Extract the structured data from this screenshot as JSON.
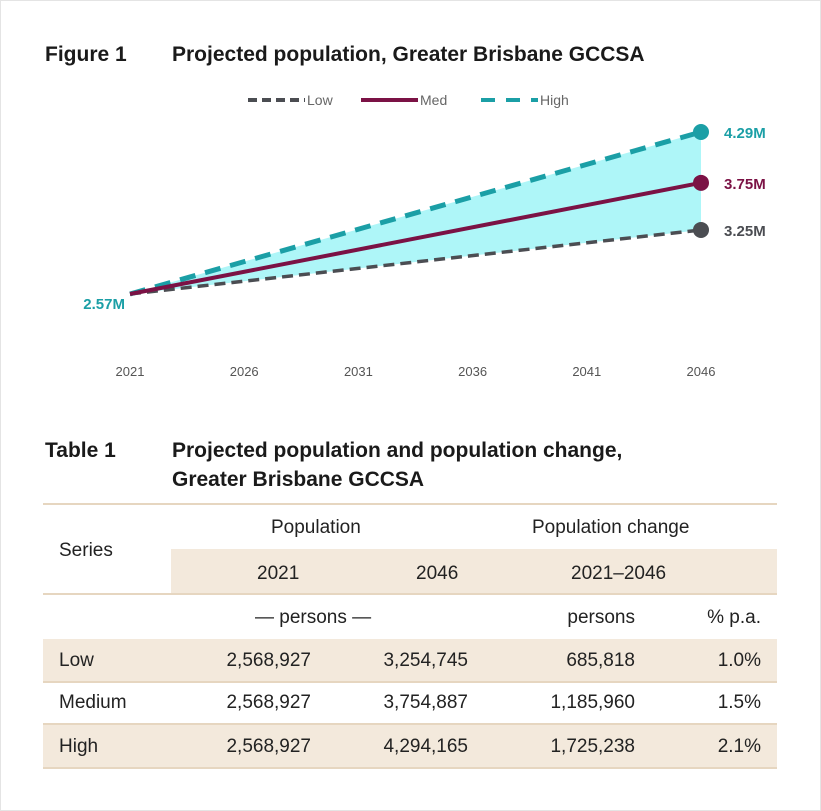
{
  "figure": {
    "label": "Figure 1",
    "title": "Projected population, Greater Brisbane GCCSA"
  },
  "chart_data": {
    "type": "line",
    "x": [
      2021,
      2046
    ],
    "x_ticks": [
      "2021",
      "2026",
      "2031",
      "2036",
      "2041",
      "2046"
    ],
    "unit": "million persons",
    "series": [
      {
        "name": "Low",
        "values": [
          2.57,
          3.25
        ],
        "end_label": "3.25M",
        "color": "#4b4d52",
        "style": "dashed"
      },
      {
        "name": "Med",
        "values": [
          2.57,
          3.75
        ],
        "end_label": "3.75M",
        "color": "#7b1245",
        "style": "solid"
      },
      {
        "name": "High",
        "values": [
          2.57,
          4.29
        ],
        "end_label": "4.29M",
        "color": "#1b9fa6",
        "style": "dashed"
      }
    ],
    "start_label": "2.57M",
    "band_fill": "#aef6f8",
    "legend": "top-center",
    "grid": false
  },
  "table": {
    "label": "Table 1",
    "title_line1": "Projected population and population change,",
    "title_line2": "Greater Brisbane GCCSA",
    "header": {
      "series": "Series",
      "population": "Population",
      "population_change": "Population change",
      "y2021": "2021",
      "y2046": "2046",
      "range": "2021–2046",
      "persons_span": "— persons —",
      "persons": "persons",
      "pct": "% p.a."
    },
    "rows": [
      {
        "series": "Low",
        "p2021": "2,568,927",
        "p2046": "3,254,745",
        "change": "685,818",
        "pct": "1.0%"
      },
      {
        "series": "Medium",
        "p2021": "2,568,927",
        "p2046": "3,754,887",
        "change": "1,185,960",
        "pct": "1.5%"
      },
      {
        "series": "High",
        "p2021": "2,568,927",
        "p2046": "4,294,165",
        "change": "1,725,238",
        "pct": "2.1%"
      }
    ]
  }
}
